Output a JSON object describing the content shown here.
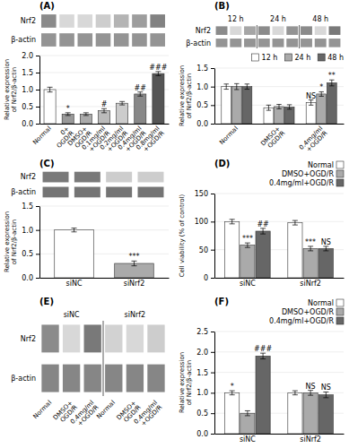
{
  "chart_data": [
    {
      "type": "blot",
      "title": "(A)",
      "series": [
        {
          "name": "Nrf2",
          "colors": [
            "#8b8b8b",
            "#d8d8d8",
            "#d8d8d8",
            "#cdcdcd",
            "#b4b4b4",
            "#9d9d9d",
            "#828282"
          ]
        },
        {
          "name": "β-actin",
          "colors": [
            "#949494",
            "#949494",
            "#949494",
            "#949494",
            "#949494",
            "#949494",
            "#949494"
          ]
        }
      ]
    },
    {
      "type": "bar",
      "categories": [
        "Normal",
        "0+\nOGD/R",
        "DMSO+\nOGD/R",
        "0.1mg/ml\n+OGD/R",
        "0.2mg/ml\n+OGD/R",
        "0.4mg/ml\n+OGD/R",
        "0.8mg/ml\n+OGD/R"
      ],
      "values": [
        1.0,
        0.28,
        0.28,
        0.38,
        0.6,
        0.87,
        1.47
      ],
      "errors": [
        0.07,
        0.04,
        0.04,
        0.06,
        0.05,
        0.06,
        0.06
      ],
      "colors": [
        "#ffffff",
        "#999999",
        "#aaaaaa",
        "#bbbbbb",
        "#cccccc",
        "#888888",
        "#555555"
      ],
      "annotations": [
        null,
        "*",
        null,
        "#",
        null,
        "##",
        "###"
      ],
      "y_label": "Relative expression\nof Nrf2/β-actin",
      "ylim": [
        0.0,
        2.0
      ],
      "yticks": [
        {
          "value": 0.0,
          "label": "0.0"
        },
        0.5,
        {
          "value": 1.0,
          "label": "1.0"
        },
        1.5,
        {
          "value": 2.0,
          "label": "2.0"
        }
      ],
      "grid": true
    },
    {
      "type": "blot",
      "title": "(B)",
      "annotations": [
        "12 h",
        "24 h",
        "48 h"
      ],
      "series": [
        {
          "name": "Nrf2",
          "colors": [
            "#8b8b8b",
            "#d8d8d8",
            "#a6a6a6",
            "#8b8b8b",
            "#d8d8d8",
            "#949494",
            "#8b8b8b",
            "#d8d8d8",
            "#797979"
          ]
        },
        {
          "name": "β-actin",
          "colors": [
            "#949494",
            "#949494",
            "#949494",
            "#949494",
            "#949494",
            "#949494",
            "#949494",
            "#949494",
            "#949494"
          ]
        }
      ]
    },
    {
      "type": "bar",
      "categories": [
        "Normal",
        "DMSO+\nOGD/R",
        "0.4mg/ml\n+OGD/R"
      ],
      "series": [
        {
          "name": "12 h",
          "color": "#ffffff",
          "values": [
            1.0,
            0.43,
            0.57
          ],
          "errors": [
            0.07,
            0.07,
            0.07
          ],
          "annotations": [
            null,
            null,
            "NS"
          ]
        },
        {
          "name": "24 h",
          "color": "#aaaaaa",
          "values": [
            1.0,
            0.46,
            0.8
          ],
          "errors": [
            0.08,
            0.06,
            0.06
          ],
          "annotations": [
            null,
            null,
            "*"
          ]
        },
        {
          "name": "48 h",
          "color": "#666666",
          "values": [
            1.0,
            0.45,
            1.1
          ],
          "errors": [
            0.07,
            0.06,
            0.08
          ],
          "annotations": [
            null,
            null,
            "**"
          ]
        }
      ],
      "y_label": "Relative expression\nof Nrf2/β-actin",
      "ylim": [
        0.0,
        1.5
      ],
      "yticks": [
        {
          "value": 0.0,
          "label": "0.0"
        },
        0.5,
        {
          "value": 1.0,
          "label": "1.0"
        },
        1.5
      ],
      "legend": "upper right",
      "grid": true
    },
    {
      "type": "blot",
      "title": "(C)",
      "series": [
        {
          "name": "Nrf2",
          "colors": [
            "#797979",
            "#797979",
            "#cdcdcd",
            "#cdcdcd"
          ]
        },
        {
          "name": "β-actin",
          "colors": [
            "#747474",
            "#747474",
            "#747474",
            "#747474"
          ]
        }
      ]
    },
    {
      "type": "bar",
      "categories": [
        "siNC",
        "siNrf2"
      ],
      "values": [
        1.0,
        0.3
      ],
      "errors": [
        0.04,
        0.05
      ],
      "colors": [
        "#ffffff",
        "#aaaaaa"
      ],
      "annotations": [
        null,
        "***"
      ],
      "y_label": "Relative expression\nof Nrf2/β-actin",
      "ylim": [
        0.0,
        1.5
      ],
      "yticks": [
        {
          "value": 0.0,
          "label": "0.0"
        },
        0.5,
        {
          "value": 1.0,
          "label": "1.0"
        },
        1.5
      ],
      "grid": true
    },
    {
      "type": "bar",
      "title": "(D)",
      "categories": [
        "siNC",
        "siNrf2"
      ],
      "series": [
        {
          "name": "Normal",
          "color": "#ffffff",
          "values": [
            100.0,
            98.0
          ],
          "errors": [
            4.0,
            4.0
          ],
          "annotations": [
            null,
            null
          ]
        },
        {
          "name": "DMSO+OGD/R",
          "color": "#aaaaaa",
          "values": [
            58.0,
            52.0
          ],
          "errors": [
            4.0,
            4.0
          ],
          "annotations": [
            "***",
            "***"
          ]
        },
        {
          "name": "0.4mg/ml+OGD/R",
          "color": "#666666",
          "values": [
            83.0,
            52.0
          ],
          "errors": [
            5.0,
            4.0
          ],
          "annotations": [
            "##",
            "NS"
          ]
        }
      ],
      "y_label": "Cell viability (% of control)",
      "ylim": [
        0,
        150
      ],
      "yticks": [
        0,
        50,
        100,
        150
      ],
      "legend": "upper right",
      "grid": true
    },
    {
      "type": "blot",
      "title": "(E)",
      "annotations": [
        "siNC",
        "siNrf2"
      ],
      "categories": [
        "Normal",
        "DMSO+\nOGD/R",
        "0.4mg/ml\n+OGD/R",
        "Normal",
        "DMSO+\nOGD/R",
        "0.4mg/ml\n+OGD/R"
      ],
      "series": [
        {
          "name": "Nrf2",
          "colors": [
            "#8b8b8b",
            "#d8d8d8",
            "#797979",
            "#d2d2d2",
            "#d8d8d8",
            "#cdcdcd"
          ]
        },
        {
          "name": "β-actin",
          "colors": [
            "#868686",
            "#868686",
            "#868686",
            "#868686",
            "#868686",
            "#868686"
          ]
        }
      ]
    },
    {
      "type": "bar",
      "title": "(F)",
      "categories": [
        "siNC",
        "siNrf2"
      ],
      "series": [
        {
          "name": "Normal",
          "color": "#ffffff",
          "values": [
            1.0,
            1.0
          ],
          "errors": [
            0.05,
            0.05
          ],
          "annotations": [
            "*",
            null
          ]
        },
        {
          "name": "DMSO+OGD/R",
          "color": "#aaaaaa",
          "values": [
            0.5,
            1.0
          ],
          "errors": [
            0.06,
            0.06
          ],
          "annotations": [
            null,
            "NS"
          ]
        },
        {
          "name": "0.4mg/ml+OGD/R",
          "color": "#666666",
          "values": [
            1.9,
            0.95
          ],
          "errors": [
            0.07,
            0.07
          ],
          "annotations": [
            "###",
            "NS"
          ]
        }
      ],
      "y_label": "Relative expression\nof Nrf2/β-actin",
      "ylim": [
        0,
        2.5
      ],
      "yticks": [
        {
          "value": 0,
          "label": "0.0"
        },
        0.5,
        {
          "value": 1,
          "label": "1.0"
        },
        1.5,
        {
          "value": 2,
          "label": "2.0"
        },
        2.5
      ],
      "legend": "upper right",
      "grid": true
    }
  ]
}
